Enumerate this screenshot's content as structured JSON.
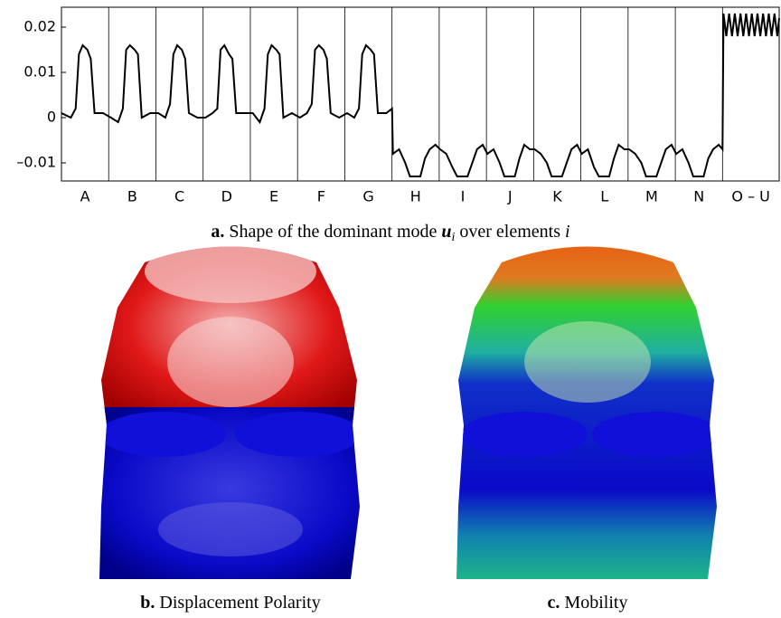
{
  "chart_data": {
    "type": "line",
    "categories": [
      "A",
      "B",
      "C",
      "D",
      "E",
      "F",
      "G",
      "H",
      "I",
      "J",
      "K",
      "L",
      "M",
      "N",
      "O – U"
    ],
    "x": [
      0,
      0.2,
      0.3,
      0.37,
      0.45,
      0.55,
      0.62,
      0.7,
      0.88,
      1.05,
      1.2,
      1.3,
      1.37,
      1.45,
      1.55,
      1.62,
      1.7,
      1.88,
      2.05,
      2.2,
      2.3,
      2.37,
      2.45,
      2.55,
      2.62,
      2.7,
      2.88,
      3.05,
      3.2,
      3.3,
      3.37,
      3.45,
      3.55,
      3.62,
      3.7,
      3.88,
      4.05,
      4.2,
      4.3,
      4.37,
      4.45,
      4.55,
      4.62,
      4.7,
      4.88,
      5.05,
      5.2,
      5.3,
      5.37,
      5.45,
      5.55,
      5.62,
      5.7,
      5.88,
      6.05,
      6.2,
      6.3,
      6.37,
      6.45,
      6.55,
      6.62,
      6.7,
      6.88,
      7.0,
      7.02,
      7.15,
      7.28,
      7.38,
      7.6,
      7.7,
      7.8,
      7.92,
      8.02,
      8.15,
      8.28,
      8.38,
      8.6,
      8.7,
      8.8,
      8.92,
      9.02,
      9.15,
      9.28,
      9.38,
      9.6,
      9.7,
      9.8,
      9.92,
      10.02,
      10.15,
      10.28,
      10.38,
      10.6,
      10.7,
      10.8,
      10.92,
      11.02,
      11.15,
      11.28,
      11.38,
      11.6,
      11.7,
      11.8,
      11.92,
      12.02,
      12.15,
      12.28,
      12.38,
      12.6,
      12.7,
      12.8,
      12.92,
      13.02,
      13.15,
      13.28,
      13.38,
      13.6,
      13.7,
      13.8,
      13.92,
      14.0,
      14.02,
      14.08,
      14.14,
      14.2,
      14.26,
      14.32,
      14.38,
      14.44,
      14.5,
      14.56,
      14.62,
      14.68,
      14.74,
      14.8,
      14.86,
      14.92,
      14.98,
      15.04,
      15.1,
      15.16,
      15.2
    ],
    "series": [
      {
        "color": "#000000",
        "values": [
          0.001,
          0,
          0.002,
          0.014,
          0.016,
          0.015,
          0.013,
          0.001,
          0.001,
          0,
          -0.001,
          0.002,
          0.015,
          0.016,
          0.015,
          0.014,
          0,
          0.001,
          0.001,
          0,
          0.003,
          0.014,
          0.016,
          0.015,
          0.013,
          0.001,
          0,
          0,
          0.001,
          0.002,
          0.015,
          0.016,
          0.014,
          0.013,
          0.001,
          0.001,
          0.001,
          -0.001,
          0.002,
          0.014,
          0.016,
          0.015,
          0.014,
          0,
          0.001,
          0,
          0.001,
          0.003,
          0.015,
          0.016,
          0.015,
          0.013,
          0.001,
          0,
          0.001,
          0,
          0.002,
          0.014,
          0.016,
          0.015,
          0.014,
          0.001,
          0.001,
          0.002,
          -0.008,
          -0.007,
          -0.01,
          -0.013,
          -0.013,
          -0.009,
          -0.007,
          -0.006,
          -0.007,
          -0.008,
          -0.011,
          -0.013,
          -0.013,
          -0.01,
          -0.007,
          -0.006,
          -0.008,
          -0.007,
          -0.01,
          -0.013,
          -0.013,
          -0.009,
          -0.006,
          -0.007,
          -0.007,
          -0.008,
          -0.01,
          -0.013,
          -0.013,
          -0.01,
          -0.007,
          -0.006,
          -0.008,
          -0.007,
          -0.011,
          -0.013,
          -0.013,
          -0.009,
          -0.006,
          -0.007,
          -0.007,
          -0.008,
          -0.01,
          -0.013,
          -0.013,
          -0.01,
          -0.007,
          -0.006,
          -0.008,
          -0.007,
          -0.01,
          -0.013,
          -0.013,
          -0.009,
          -0.007,
          -0.006,
          -0.007,
          0.023,
          0.018,
          0.023,
          0.018,
          0.023,
          0.018,
          0.023,
          0.018,
          0.023,
          0.018,
          0.023,
          0.018,
          0.023,
          0.018,
          0.023,
          0.018,
          0.023,
          0.018,
          0.023,
          0.018,
          0.022
        ]
      }
    ],
    "xlim": [
      0,
      15.2
    ],
    "ylim": [
      -0.014,
      0.0244
    ],
    "yticks": [
      {
        "value": -0.01,
        "label": "–0.01"
      },
      0,
      0.01,
      0.02
    ]
  },
  "captions": {
    "a": {
      "label": "a.",
      "text": "Shape of the dominant mode",
      "symbol": "u",
      "subscript": "i",
      "text2": "over elements",
      "index": "i"
    },
    "b": {
      "label": "b.",
      "text": "Displacement Polarity"
    },
    "c": {
      "label": "c.",
      "text": "Mobility"
    }
  }
}
